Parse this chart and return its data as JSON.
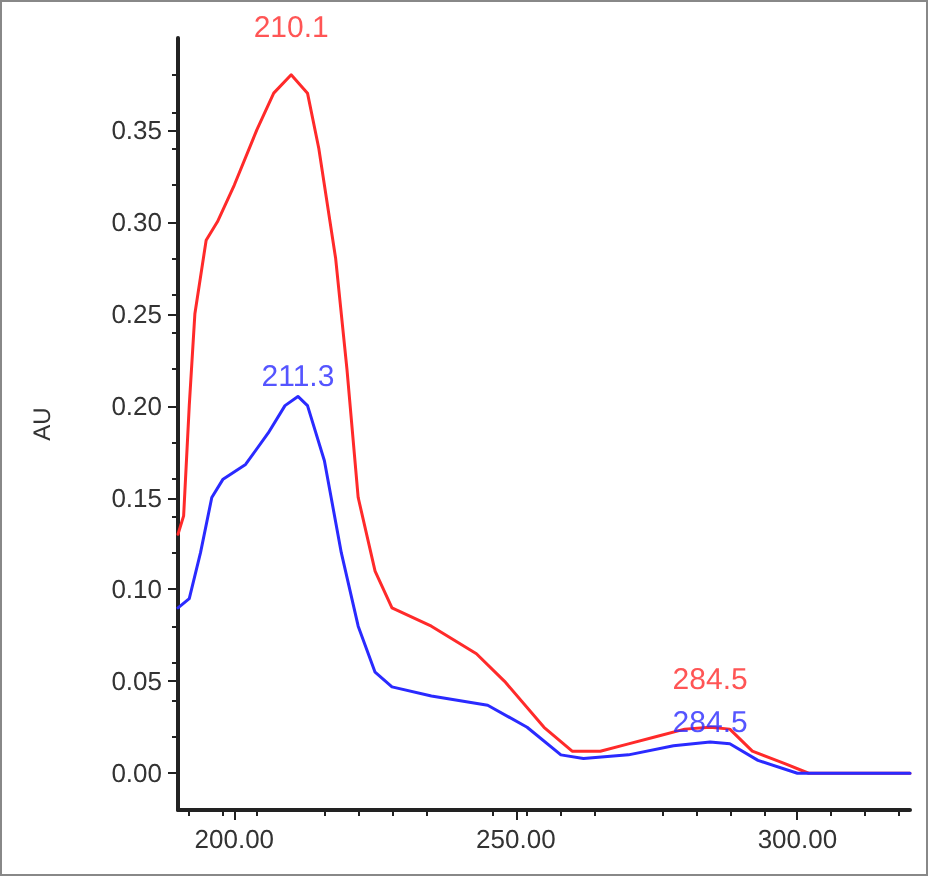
{
  "chart_data": {
    "type": "line",
    "ylabel": "AU",
    "grid": false,
    "marker": "none",
    "line_style": "solid",
    "xlim": [
      190,
      320
    ],
    "ylim": [
      -0.02,
      0.4
    ],
    "xticks": [
      {
        "value": 200,
        "label": "200.00"
      },
      {
        "value": 250,
        "label": "250.00"
      },
      {
        "value": 300,
        "label": "300.00"
      }
    ],
    "yticks": [
      {
        "value": 0,
        "label": "0.00"
      },
      {
        "value": 0.05,
        "label": "0.05"
      },
      {
        "value": 0.1,
        "label": "0.10"
      },
      {
        "value": 0.15,
        "label": "0.15"
      },
      {
        "value": 0.2,
        "label": "0.20"
      },
      {
        "value": 0.25,
        "label": "0.25"
      },
      {
        "value": 0.3,
        "label": "0.30"
      },
      {
        "value": 0.35,
        "label": "0.35"
      }
    ],
    "series": [
      {
        "color": "#ff2a2a",
        "x": [
          190,
          191,
          192,
          193,
          195,
          197,
          200,
          204,
          207,
          210.1,
          213,
          215,
          218,
          220,
          222,
          225,
          228,
          235,
          243,
          248,
          255,
          260,
          265,
          270,
          275,
          280,
          284.5,
          288,
          292,
          298,
          302,
          320
        ],
        "values": [
          0.13,
          0.14,
          0.2,
          0.25,
          0.29,
          0.3,
          0.32,
          0.35,
          0.37,
          0.38,
          0.37,
          0.34,
          0.28,
          0.22,
          0.15,
          0.11,
          0.09,
          0.08,
          0.065,
          0.05,
          0.025,
          0.012,
          0.012,
          0.016,
          0.02,
          0.024,
          0.025,
          0.024,
          0.012,
          0.005,
          0,
          0
        ]
      },
      {
        "color": "#2a2aff",
        "x": [
          190,
          192,
          194,
          196,
          198,
          202,
          206,
          209,
          211.3,
          213,
          216,
          219,
          222,
          225,
          228,
          235,
          245,
          252,
          258,
          262,
          270,
          278,
          284.5,
          288,
          293,
          300,
          320
        ],
        "values": [
          0.09,
          0.095,
          0.12,
          0.15,
          0.16,
          0.168,
          0.185,
          0.2,
          0.205,
          0.2,
          0.17,
          0.12,
          0.08,
          0.055,
          0.047,
          0.042,
          0.037,
          0.025,
          0.01,
          0.008,
          0.01,
          0.015,
          0.017,
          0.016,
          0.007,
          0,
          0
        ]
      }
    ],
    "annotations": [
      {
        "text": "210.1",
        "x": 210.1,
        "y": 0.38
      },
      {
        "text": "211.3",
        "x": 211.3,
        "y": 0.205
      },
      {
        "text": "284.5",
        "x": 284.5,
        "y": 0.025
      },
      {
        "text": "284.5",
        "x": 284.5,
        "y": 0.017
      }
    ]
  }
}
